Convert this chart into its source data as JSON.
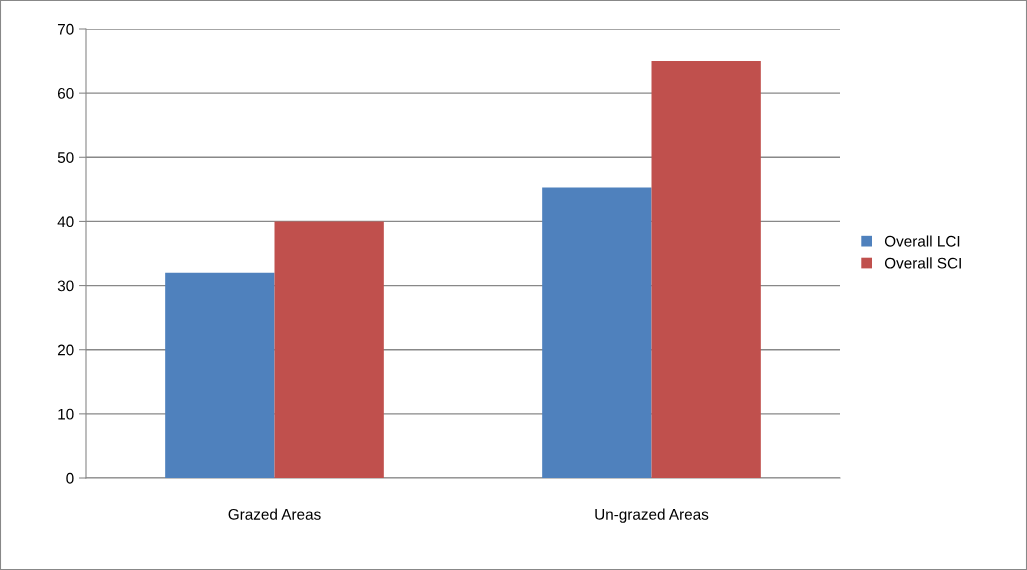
{
  "chart_data": {
    "type": "bar",
    "categories": [
      "Grazed Areas",
      "Un-grazed Areas"
    ],
    "series": [
      {
        "name": "Overall LCI",
        "color": "#4f81bd",
        "values": [
          32,
          45.3
        ]
      },
      {
        "name": "Overall SCI",
        "color": "#c0504d",
        "values": [
          40,
          65
        ]
      }
    ],
    "ylim": [
      0,
      70
    ],
    "yticks": [
      0,
      10,
      20,
      30,
      40,
      50,
      60,
      70
    ],
    "grid": "y",
    "legend": "right"
  }
}
